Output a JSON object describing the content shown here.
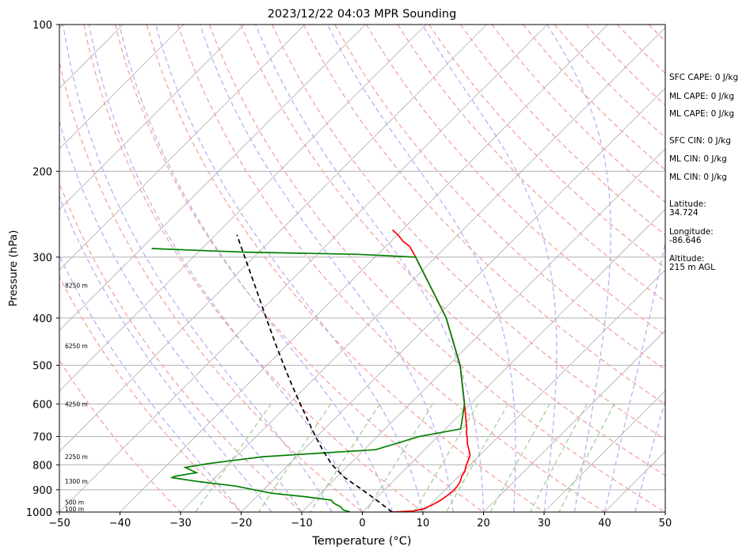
{
  "chart_data": {
    "type": "skew-t sounding",
    "title": "2023/12/22 04:03 MPR Sounding",
    "xlabel": "Temperature (°C)",
    "ylabel": "Pressure (hPa)",
    "xlim": [
      -50,
      50
    ],
    "ylim": [
      1000,
      100
    ],
    "y_scale": "log",
    "x_ticks": [
      "−50",
      "−40",
      "−30",
      "−20",
      "−10",
      "0",
      "10",
      "20",
      "30",
      "40",
      "50"
    ],
    "y_ticks": [
      "100",
      "200",
      "300",
      "400",
      "500",
      "600",
      "700",
      "800",
      "900",
      "1000"
    ],
    "grid": true,
    "height_labels": [
      {
        "text": "100 m",
        "p": 985
      },
      {
        "text": "500 m",
        "p": 955
      },
      {
        "text": "1300 m",
        "p": 865
      },
      {
        "text": "2250 m",
        "p": 770
      },
      {
        "text": "4250 m",
        "p": 600
      },
      {
        "text": "6250 m",
        "p": 456
      },
      {
        "text": "8250 m",
        "p": 343
      }
    ],
    "series": [
      {
        "style": "temperature",
        "color": "#ff0000",
        "points": [
          [
            1000,
            4.9
          ],
          [
            995,
            8.2
          ],
          [
            985,
            9.6
          ],
          [
            965,
            10.4
          ],
          [
            945,
            11
          ],
          [
            925,
            11.3
          ],
          [
            905,
            11.5
          ],
          [
            885,
            11.4
          ],
          [
            865,
            11.1
          ],
          [
            845,
            10.5
          ],
          [
            825,
            10.2
          ],
          [
            805,
            9.5
          ],
          [
            785,
            9
          ],
          [
            765,
            8.4
          ],
          [
            745,
            7.3
          ],
          [
            725,
            6.1
          ],
          [
            705,
            5.1
          ],
          [
            690,
            4.2
          ],
          [
            675,
            3.5
          ],
          [
            600,
            -1
          ],
          [
            500,
            -8.1
          ],
          [
            400,
            -18.2
          ],
          [
            350,
            -25.2
          ],
          [
            300,
            -33.3
          ],
          [
            285,
            -36.1
          ],
          [
            278,
            -38.1
          ],
          [
            270,
            -39.9
          ],
          [
            264,
            -41.6
          ]
        ]
      },
      {
        "style": "dewpoint",
        "color": "#008000",
        "points": [
          [
            1000,
            -2
          ],
          [
            990,
            -3.5
          ],
          [
            975,
            -4.5
          ],
          [
            960,
            -6.1
          ],
          [
            945,
            -7.1
          ],
          [
            930,
            -12
          ],
          [
            915,
            -18.1
          ],
          [
            885,
            -25.1
          ],
          [
            865,
            -32.4
          ],
          [
            850,
            -37.1
          ],
          [
            845,
            -36.9
          ],
          [
            830,
            -33.9
          ],
          [
            810,
            -36.6
          ],
          [
            795,
            -33.3
          ],
          [
            785,
            -30.2
          ],
          [
            770,
            -25.6
          ],
          [
            745,
            -8.1
          ],
          [
            700,
            -3.1
          ],
          [
            675,
            2.5
          ],
          [
            600,
            -1
          ],
          [
            500,
            -8.1
          ],
          [
            400,
            -18.2
          ],
          [
            350,
            -25.2
          ],
          [
            300,
            -33.3
          ],
          [
            296,
            -43.4
          ],
          [
            293,
            -62.1
          ],
          [
            291,
            -68.9
          ],
          [
            288,
            -78.3
          ]
        ]
      },
      {
        "style": "parcel",
        "color": "#000000",
        "points": [
          [
            1000,
            4.9
          ],
          [
            950,
            0.8
          ],
          [
            900,
            -3.7
          ],
          [
            850,
            -8.6
          ],
          [
            800,
            -12.8
          ],
          [
            750,
            -16.5
          ],
          [
            700,
            -20.2
          ],
          [
            650,
            -24
          ],
          [
            600,
            -28.1
          ],
          [
            550,
            -32.5
          ],
          [
            500,
            -37.2
          ],
          [
            450,
            -42.3
          ],
          [
            400,
            -47.9
          ],
          [
            350,
            -54.2
          ],
          [
            300,
            -61.5
          ],
          [
            270,
            -66.5
          ]
        ]
      }
    ]
  },
  "info_panel": {
    "sfc_cape": "SFC CAPE: 0 J/kg",
    "ml_cape_1": "ML CAPE: 0 J/kg",
    "ml_cape_2": "ML CAPE: 0 J/kg",
    "sfc_cin": "SFC CIN: 0 J/kg",
    "ml_cin_1": "ML CIN: 0 J/kg",
    "ml_cin_2": "ML CIN: 0 J/kg",
    "latitude": "Latitude:\n34.724",
    "longitude": "Longitude:\n-86.646",
    "altitude": "Altitude:\n215 m AGL"
  }
}
